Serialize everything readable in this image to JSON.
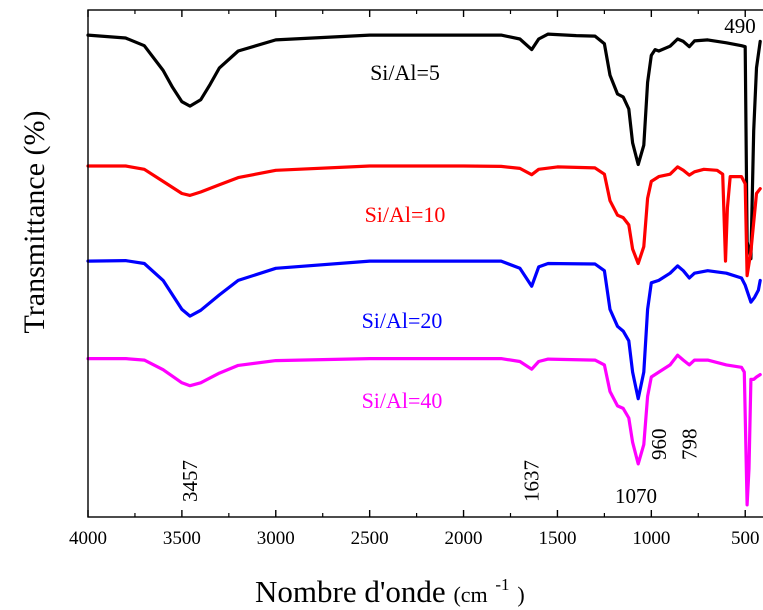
{
  "chart_data": {
    "type": "line",
    "xlabel": "Nombre d'onde",
    "xlabel_unit": "(cm",
    "xlabel_unit_exp": "-1",
    "xlabel_unit_close": ")",
    "ylabel": "Transmittance (%)",
    "xlim": [
      4000,
      420
    ],
    "x_reversed": true,
    "x_ticks": [
      4000,
      3500,
      3000,
      2500,
      2000,
      1500,
      1000,
      500
    ],
    "x_tick_labels": [
      "4000",
      "3500",
      "3000",
      "2500",
      "2000",
      "1500",
      "1000",
      "500"
    ],
    "y_ticks_shown": false,
    "grid": false,
    "ylim": [
      0,
      100
    ],
    "series": [
      {
        "name": "Si/Al=5",
        "color": "#000000",
        "points": [
          [
            4000,
            94.8
          ],
          [
            3800,
            94.2
          ],
          [
            3700,
            92.6
          ],
          [
            3600,
            87.5
          ],
          [
            3550,
            84.0
          ],
          [
            3500,
            81.0
          ],
          [
            3457,
            80.1
          ],
          [
            3400,
            81.4
          ],
          [
            3350,
            84.6
          ],
          [
            3300,
            88.0
          ],
          [
            3200,
            91.5
          ],
          [
            3000,
            93.8
          ],
          [
            2500,
            94.8
          ],
          [
            2000,
            94.8
          ],
          [
            1800,
            94.8
          ],
          [
            1700,
            94.0
          ],
          [
            1637,
            91.8
          ],
          [
            1600,
            94.0
          ],
          [
            1550,
            95.0
          ],
          [
            1400,
            94.7
          ],
          [
            1300,
            94.6
          ],
          [
            1250,
            93.0
          ],
          [
            1220,
            86.5
          ],
          [
            1180,
            82.6
          ],
          [
            1150,
            82.0
          ],
          [
            1120,
            79.5
          ],
          [
            1100,
            72.5
          ],
          [
            1070,
            68.0
          ],
          [
            1040,
            72.0
          ],
          [
            1020,
            85.0
          ],
          [
            1000,
            90.6
          ],
          [
            980,
            91.8
          ],
          [
            960,
            91.5
          ],
          [
            900,
            92.5
          ],
          [
            860,
            94.0
          ],
          [
            830,
            93.5
          ],
          [
            798,
            92.4
          ],
          [
            770,
            93.6
          ],
          [
            700,
            93.8
          ],
          [
            600,
            93.2
          ],
          [
            520,
            92.6
          ],
          [
            500,
            92.4
          ],
          [
            490,
            52.0
          ],
          [
            470,
            48.5
          ],
          [
            455,
            75.0
          ],
          [
            440,
            88.0
          ],
          [
            420,
            93.5
          ]
        ]
      },
      {
        "name": "Si/Al=10",
        "color": "#ff0000",
        "points": [
          [
            4000,
            67.7
          ],
          [
            3800,
            67.7
          ],
          [
            3700,
            67.0
          ],
          [
            3600,
            64.5
          ],
          [
            3500,
            62.0
          ],
          [
            3457,
            61.6
          ],
          [
            3400,
            62.3
          ],
          [
            3300,
            63.8
          ],
          [
            3200,
            65.3
          ],
          [
            3000,
            66.8
          ],
          [
            2500,
            67.7
          ],
          [
            2000,
            67.7
          ],
          [
            1800,
            67.6
          ],
          [
            1700,
            67.2
          ],
          [
            1637,
            65.9
          ],
          [
            1600,
            67.0
          ],
          [
            1500,
            67.5
          ],
          [
            1300,
            67.3
          ],
          [
            1250,
            66.0
          ],
          [
            1220,
            60.5
          ],
          [
            1180,
            57.5
          ],
          [
            1150,
            57.0
          ],
          [
            1120,
            55.5
          ],
          [
            1100,
            50.5
          ],
          [
            1070,
            47.5
          ],
          [
            1040,
            51.0
          ],
          [
            1020,
            61.0
          ],
          [
            1000,
            64.5
          ],
          [
            960,
            65.5
          ],
          [
            900,
            66.0
          ],
          [
            860,
            67.5
          ],
          [
            830,
            66.8
          ],
          [
            798,
            65.8
          ],
          [
            770,
            66.5
          ],
          [
            720,
            67.0
          ],
          [
            650,
            66.8
          ],
          [
            620,
            66.0
          ],
          [
            605,
            48.0
          ],
          [
            595,
            59.0
          ],
          [
            580,
            65.5
          ],
          [
            520,
            65.5
          ],
          [
            500,
            64.0
          ],
          [
            490,
            45.0
          ],
          [
            470,
            50.0
          ],
          [
            440,
            62.0
          ],
          [
            420,
            63.0
          ]
        ]
      },
      {
        "name": "Si/Al=20",
        "color": "#0000ff",
        "points": [
          [
            4000,
            48.0
          ],
          [
            3800,
            48.1
          ],
          [
            3700,
            47.5
          ],
          [
            3600,
            44.0
          ],
          [
            3500,
            38.0
          ],
          [
            3457,
            36.6
          ],
          [
            3400,
            37.8
          ],
          [
            3300,
            41.0
          ],
          [
            3200,
            44.0
          ],
          [
            3000,
            46.5
          ],
          [
            2500,
            48.0
          ],
          [
            2000,
            48.0
          ],
          [
            1800,
            48.0
          ],
          [
            1700,
            46.5
          ],
          [
            1637,
            42.8
          ],
          [
            1600,
            46.8
          ],
          [
            1550,
            47.5
          ],
          [
            1300,
            47.4
          ],
          [
            1250,
            46.0
          ],
          [
            1220,
            38.0
          ],
          [
            1180,
            34.5
          ],
          [
            1150,
            33.5
          ],
          [
            1120,
            31.5
          ],
          [
            1100,
            25.0
          ],
          [
            1070,
            19.5
          ],
          [
            1040,
            25.0
          ],
          [
            1020,
            38.0
          ],
          [
            1000,
            43.5
          ],
          [
            960,
            44.0
          ],
          [
            900,
            45.5
          ],
          [
            860,
            47.0
          ],
          [
            830,
            46.0
          ],
          [
            798,
            44.5
          ],
          [
            770,
            45.5
          ],
          [
            700,
            46.0
          ],
          [
            600,
            45.5
          ],
          [
            520,
            44.5
          ],
          [
            500,
            43.0
          ],
          [
            470,
            39.5
          ],
          [
            450,
            40.5
          ],
          [
            430,
            42.0
          ],
          [
            420,
            44.0
          ]
        ]
      },
      {
        "name": "Si/Al=40",
        "color": "#ff00ff",
        "points": [
          [
            4000,
            27.8
          ],
          [
            3800,
            27.8
          ],
          [
            3700,
            27.5
          ],
          [
            3600,
            25.5
          ],
          [
            3500,
            22.8
          ],
          [
            3457,
            22.2
          ],
          [
            3400,
            22.8
          ],
          [
            3300,
            24.8
          ],
          [
            3200,
            26.4
          ],
          [
            3000,
            27.4
          ],
          [
            2500,
            27.8
          ],
          [
            2000,
            27.8
          ],
          [
            1800,
            27.8
          ],
          [
            1700,
            27.2
          ],
          [
            1637,
            25.6
          ],
          [
            1600,
            27.2
          ],
          [
            1550,
            27.7
          ],
          [
            1300,
            27.5
          ],
          [
            1250,
            26.5
          ],
          [
            1220,
            21.0
          ],
          [
            1180,
            18.0
          ],
          [
            1150,
            17.5
          ],
          [
            1120,
            15.5
          ],
          [
            1100,
            10.5
          ],
          [
            1070,
            6.0
          ],
          [
            1040,
            10.0
          ],
          [
            1020,
            20.0
          ],
          [
            1000,
            24.0
          ],
          [
            960,
            25.0
          ],
          [
            900,
            26.5
          ],
          [
            860,
            28.5
          ],
          [
            830,
            27.5
          ],
          [
            798,
            26.5
          ],
          [
            770,
            27.5
          ],
          [
            700,
            27.5
          ],
          [
            600,
            26.5
          ],
          [
            520,
            26.0
          ],
          [
            505,
            25.0
          ],
          [
            490,
            -2.5
          ],
          [
            480,
            5.0
          ],
          [
            470,
            23.5
          ],
          [
            455,
            23.5
          ],
          [
            440,
            24.0
          ],
          [
            420,
            24.5
          ]
        ]
      }
    ],
    "annotations": [
      {
        "text": "3457",
        "x": 3457,
        "rotated": true
      },
      {
        "text": "1637",
        "x": 1637,
        "rotated": true
      },
      {
        "text": "960",
        "x": 960,
        "rotated": true
      },
      {
        "text": "798",
        "x": 798,
        "rotated": true
      },
      {
        "text": "1070",
        "x": 1070,
        "rotated": false
      },
      {
        "text": "490",
        "x": 490,
        "rotated": false
      }
    ]
  }
}
